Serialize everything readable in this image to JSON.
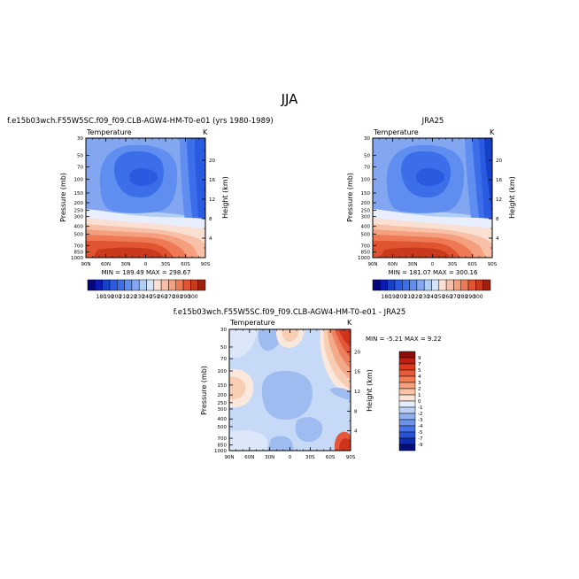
{
  "page_title": "JJA",
  "chart_data": [
    {
      "type": "contour",
      "title": "f.e15b03wch.F55W5SC.f09_f09.CLB-AGW4-HM-T0-e01 (yrs 1980-1989)",
      "subtitle": "Temperature",
      "units": "K",
      "xlabel": "",
      "ylabel": "Pressure (mb)",
      "ylabel_right": "Height (km)",
      "x_ticks": [
        "90N",
        "60N",
        "30N",
        "0",
        "30S",
        "60S",
        "90S"
      ],
      "y_ticks": [
        "30",
        "50",
        "70",
        "100",
        "150",
        "200",
        "250",
        "300",
        "400",
        "500",
        "700",
        "850",
        "1000"
      ],
      "height_ticks": [
        "20",
        "16",
        "12",
        "8",
        "4"
      ],
      "stats": "MIN = 189.49   MAX = 298.67",
      "colorbar_labels": [
        "180",
        "190",
        "200",
        "210",
        "220",
        "230",
        "240",
        "250",
        "260",
        "270",
        "280",
        "290",
        "300"
      ],
      "grid": false
    },
    {
      "type": "contour",
      "title": "JRA25",
      "subtitle": "Temperature",
      "units": "K",
      "xlabel": "",
      "ylabel": "Pressure (mb)",
      "ylabel_right": "Height (km)",
      "x_ticks": [
        "90N",
        "60N",
        "30N",
        "0",
        "30S",
        "60S",
        "90S"
      ],
      "y_ticks": [
        "30",
        "50",
        "70",
        "100",
        "150",
        "200",
        "250",
        "300",
        "400",
        "500",
        "700",
        "850",
        "1000"
      ],
      "height_ticks": [
        "20",
        "16",
        "12",
        "8",
        "4"
      ],
      "stats": "MIN = 181.07   MAX = 300.16",
      "colorbar_labels": [
        "180",
        "190",
        "200",
        "210",
        "220",
        "230",
        "240",
        "250",
        "260",
        "270",
        "280",
        "290",
        "300"
      ],
      "grid": false
    },
    {
      "type": "contour",
      "title": "f.e15b03wch.F55W5SC.f09_f09.CLB-AGW4-HM-T0-e01 - JRA25",
      "subtitle": "Temperature",
      "units": "K",
      "xlabel": "",
      "ylabel": "Pressure (mb)",
      "ylabel_right": "Height (km)",
      "x_ticks": [
        "90N",
        "60N",
        "30N",
        "0",
        "30S",
        "60S",
        "90S"
      ],
      "y_ticks": [
        "30",
        "50",
        "70",
        "100",
        "150",
        "200",
        "250",
        "300",
        "400",
        "500",
        "700",
        "850",
        "1000"
      ],
      "height_ticks": [
        "20",
        "16",
        "12",
        "8",
        "4"
      ],
      "stats": "MIN = -5.21   MAX = 9.22",
      "colorbar_labels": [
        "9",
        "7",
        "5",
        "4",
        "3",
        "2",
        "1",
        "0",
        "-1",
        "-2",
        "-3",
        "-4",
        "-5",
        "-7",
        "-9"
      ],
      "grid": false
    }
  ]
}
